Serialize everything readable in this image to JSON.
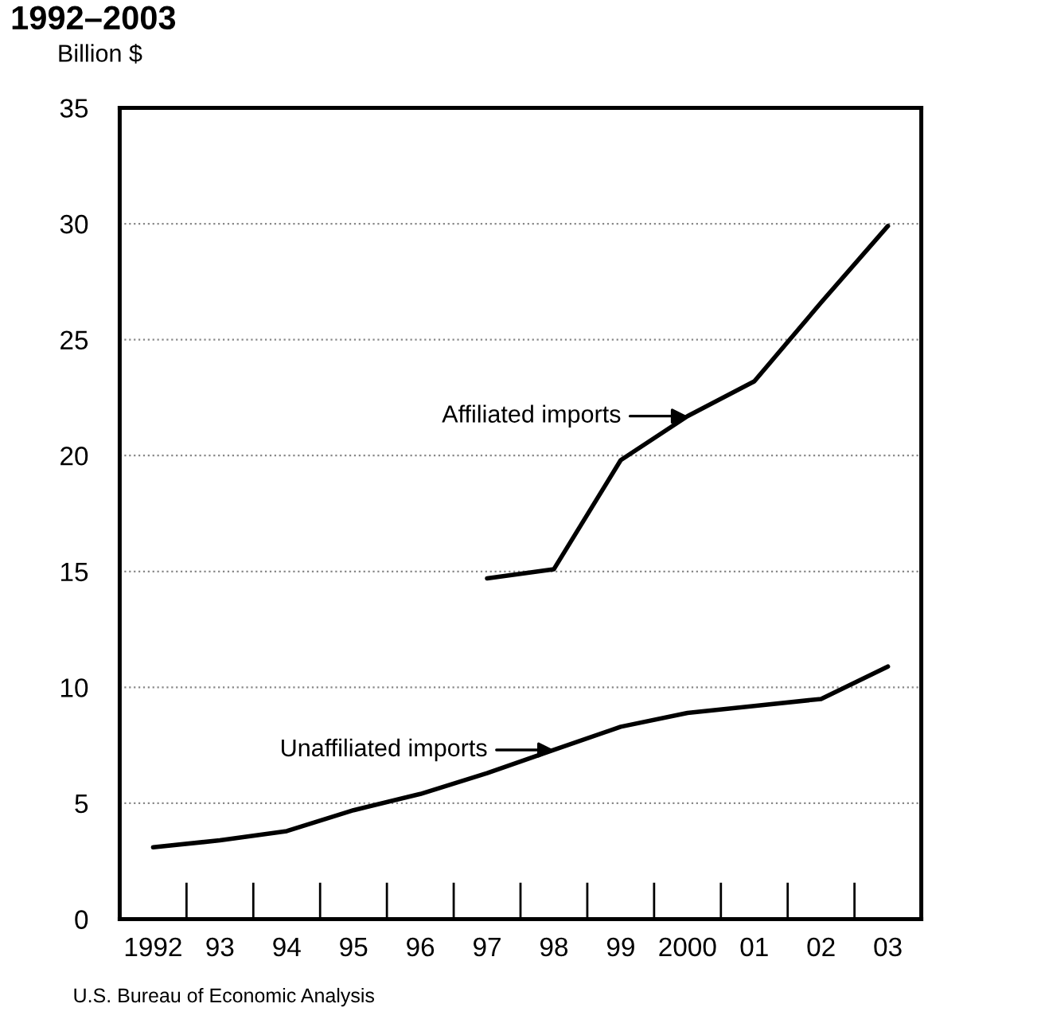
{
  "chart_data": {
    "type": "line",
    "title": "1992–2003",
    "ylabel": "Billion $",
    "categories": [
      "1992",
      "93",
      "94",
      "95",
      "96",
      "97",
      "98",
      "99",
      "2000",
      "01",
      "02",
      "03"
    ],
    "series": [
      {
        "color": "#000000",
        "values": [
          null,
          null,
          null,
          null,
          null,
          14.7,
          15.1,
          19.8,
          21.7,
          23.2,
          26.6,
          29.9
        ]
      },
      {
        "color": "#000000",
        "values": [
          3.1,
          3.4,
          3.8,
          4.7,
          5.4,
          6.3,
          7.3,
          8.3,
          8.9,
          9.2,
          9.5,
          10.9
        ]
      }
    ],
    "annotations": [
      {
        "text": "Affiliated imports",
        "x": "2000",
        "y": 21.7
      },
      {
        "text": "Unaffiliated imports",
        "x": "98",
        "y": 7.3
      },
      "U.S. Bureau of Economic Analysis"
    ],
    "ylim": [
      0,
      35
    ],
    "yticks": [
      0,
      5,
      10,
      15,
      20,
      25,
      30,
      35
    ],
    "grid": "y",
    "line_style": "solid",
    "marker": "none"
  }
}
